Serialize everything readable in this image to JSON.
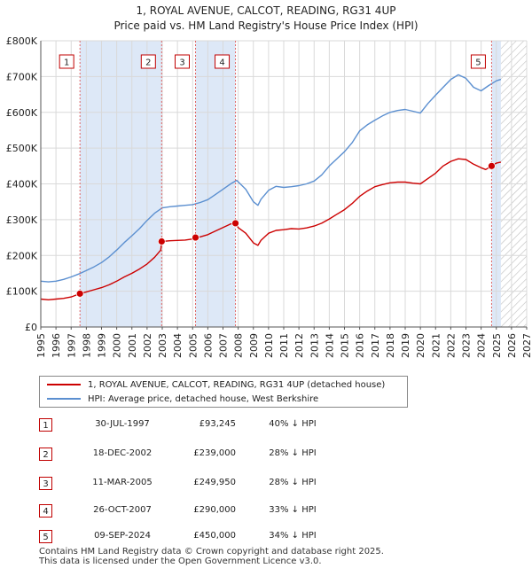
{
  "title_line1": "1, ROYAL AVENUE, CALCOT, READING, RG31 4UP",
  "title_line2": "Price paid vs. HM Land Registry's House Price Index (HPI)",
  "colors": {
    "property": "#cc0000",
    "hpi": "#5b8fd0",
    "band": "#dde8f7",
    "marker_line": "#e06666"
  },
  "legend": {
    "property_label": "1, ROYAL AVENUE, CALCOT, READING, RG31 4UP (detached house)",
    "hpi_label": "HPI: Average price, detached house, West Berkshire"
  },
  "sales": [
    {
      "id": "1",
      "date": "30-JUL-1997",
      "price": "£93,245",
      "hpi": "40% ↓ HPI"
    },
    {
      "id": "2",
      "date": "18-DEC-2002",
      "price": "£239,000",
      "hpi": "28% ↓ HPI"
    },
    {
      "id": "3",
      "date": "11-MAR-2005",
      "price": "£249,950",
      "hpi": "28% ↓ HPI"
    },
    {
      "id": "4",
      "date": "26-OCT-2007",
      "price": "£290,000",
      "hpi": "33% ↓ HPI"
    },
    {
      "id": "5",
      "date": "09-SEP-2024",
      "price": "£450,000",
      "hpi": "34% ↓ HPI"
    }
  ],
  "footer_line1": "Contains HM Land Registry data © Crown copyright and database right 2025.",
  "footer_line2": "This data is licensed under the Open Government Licence v3.0.",
  "chart_data": {
    "type": "line",
    "title": "1, ROYAL AVENUE, CALCOT, READING, RG31 4UP",
    "subtitle": "Price paid vs. HM Land Registry's House Price Index (HPI)",
    "xlim": [
      1995,
      2027
    ],
    "ylim": [
      0,
      800000
    ],
    "x_ticks": [
      1995,
      1996,
      1997,
      1998,
      1999,
      2000,
      2001,
      2002,
      2003,
      2004,
      2005,
      2006,
      2007,
      2008,
      2009,
      2010,
      2011,
      2012,
      2013,
      2014,
      2015,
      2016,
      2017,
      2018,
      2019,
      2020,
      2021,
      2022,
      2023,
      2024,
      2025,
      2026,
      2027
    ],
    "y_ticks": [
      0,
      100000,
      200000,
      300000,
      400000,
      500000,
      600000,
      700000,
      800000
    ],
    "y_tick_labels": [
      "£0",
      "£100K",
      "£200K",
      "£300K",
      "£400K",
      "£500K",
      "£600K",
      "£700K",
      "£800K"
    ],
    "shaded_bands": [
      [
        1997.58,
        2002.96
      ],
      [
        2005.19,
        2007.82
      ],
      [
        2024.69,
        2025.3
      ]
    ],
    "forecast_start": 2025.3,
    "series": [
      {
        "name": "1, ROYAL AVENUE, CALCOT, READING, RG31 4UP (detached house)",
        "x": [
          1995,
          1995.5,
          1996,
          1996.5,
          1997,
          1997.58,
          1998,
          1998.5,
          1999,
          1999.5,
          2000,
          2000.5,
          2001,
          2001.5,
          2002,
          2002.5,
          2002.9,
          2002.96,
          2003.5,
          2004,
          2004.5,
          2005,
          2005.19,
          2005.5,
          2006,
          2006.5,
          2007,
          2007.5,
          2007.82,
          2008,
          2008.5,
          2009,
          2009.3,
          2009.5,
          2010,
          2010.5,
          2011,
          2011.5,
          2012,
          2012.5,
          2013,
          2013.5,
          2014,
          2014.5,
          2015,
          2015.5,
          2016,
          2016.5,
          2017,
          2017.5,
          2018,
          2018.5,
          2019,
          2019.5,
          2020,
          2020.5,
          2021,
          2021.5,
          2022,
          2022.5,
          2023,
          2023.5,
          2024,
          2024.3,
          2024.69,
          2025,
          2025.3
        ],
        "values": [
          78000,
          76000,
          78000,
          80000,
          84000,
          93245,
          98000,
          104000,
          110000,
          118000,
          128000,
          140000,
          150000,
          162000,
          176000,
          195000,
          215000,
          239000,
          241000,
          242000,
          243000,
          246000,
          249950,
          252000,
          258000,
          268000,
          278000,
          288000,
          290000,
          278000,
          262000,
          235000,
          228000,
          242000,
          262000,
          270000,
          272000,
          275000,
          274000,
          277000,
          282000,
          290000,
          302000,
          315000,
          328000,
          345000,
          365000,
          380000,
          392000,
          398000,
          403000,
          405000,
          405000,
          402000,
          400000,
          415000,
          430000,
          450000,
          463000,
          470000,
          468000,
          455000,
          445000,
          440000,
          450000,
          458000,
          461000
        ]
      },
      {
        "name": "HPI: Average price, detached house, West Berkshire",
        "x": [
          1995,
          1995.5,
          1996,
          1996.5,
          1997,
          1997.5,
          1998,
          1998.5,
          1999,
          1999.5,
          2000,
          2000.5,
          2001,
          2001.5,
          2002,
          2002.5,
          2003,
          2003.5,
          2004,
          2004.5,
          2005,
          2005.5,
          2006,
          2006.5,
          2007,
          2007.5,
          2007.9,
          2008.5,
          2009,
          2009.3,
          2009.5,
          2010,
          2010.5,
          2011,
          2011.5,
          2012,
          2012.5,
          2013,
          2013.5,
          2014,
          2014.5,
          2015,
          2015.5,
          2016,
          2016.5,
          2017,
          2017.5,
          2018,
          2018.5,
          2019,
          2019.5,
          2020,
          2020.5,
          2021,
          2021.5,
          2022,
          2022.5,
          2023,
          2023.5,
          2024,
          2024.5,
          2025,
          2025.3
        ],
        "values": [
          128000,
          126000,
          128000,
          133000,
          140000,
          148000,
          158000,
          168000,
          180000,
          196000,
          215000,
          236000,
          255000,
          275000,
          298000,
          318000,
          333000,
          336000,
          338000,
          340000,
          342000,
          348000,
          356000,
          370000,
          385000,
          400000,
          410000,
          385000,
          350000,
          340000,
          357000,
          382000,
          393000,
          390000,
          392000,
          395000,
          400000,
          408000,
          425000,
          450000,
          470000,
          490000,
          515000,
          548000,
          565000,
          578000,
          590000,
          600000,
          605000,
          608000,
          603000,
          598000,
          625000,
          648000,
          670000,
          692000,
          705000,
          695000,
          670000,
          660000,
          675000,
          688000,
          692000
        ]
      }
    ],
    "sale_points": [
      {
        "label": "1",
        "x": 1997.58,
        "y": 93245
      },
      {
        "label": "2",
        "x": 2002.96,
        "y": 239000
      },
      {
        "label": "3",
        "x": 2005.19,
        "y": 249950
      },
      {
        "label": "4",
        "x": 2007.82,
        "y": 290000
      },
      {
        "label": "5",
        "x": 2024.69,
        "y": 450000
      }
    ]
  }
}
